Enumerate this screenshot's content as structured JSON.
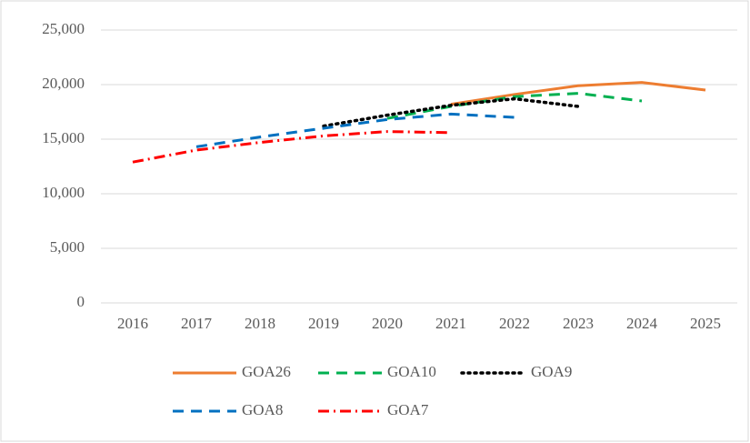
{
  "chart_data": {
    "type": "line",
    "categories": [
      "2016",
      "2017",
      "2018",
      "2019",
      "2020",
      "2021",
      "2022",
      "2023",
      "2024",
      "2025"
    ],
    "series": [
      {
        "name": "GOA26",
        "color": "#ed7d31",
        "dash": "solid",
        "values": [
          null,
          null,
          null,
          null,
          null,
          18200,
          19100,
          19900,
          20200,
          19500
        ]
      },
      {
        "name": "GOA10",
        "color": "#00b050",
        "dash": "dash",
        "values": [
          null,
          null,
          null,
          null,
          16900,
          18000,
          18900,
          19200,
          18500,
          null
        ]
      },
      {
        "name": "GOA9",
        "color": "#000000",
        "dash": "dot",
        "values": [
          null,
          null,
          null,
          16200,
          17200,
          18100,
          18700,
          18000,
          null,
          null
        ]
      },
      {
        "name": "GOA8",
        "color": "#0070c0",
        "dash": "dash",
        "values": [
          null,
          14300,
          15200,
          16000,
          16800,
          17300,
          17000,
          null,
          null,
          null
        ]
      },
      {
        "name": "GOA7",
        "color": "#ff0000",
        "dash": "dashdot",
        "values": [
          12900,
          14000,
          14700,
          15300,
          15700,
          15600,
          null,
          null,
          null,
          null
        ]
      }
    ],
    "ylim": [
      0,
      25000
    ],
    "yticks": [
      0,
      {
        "value": 5000,
        "label": "5,000"
      },
      {
        "value": 10000,
        "label": "10,000"
      },
      {
        "value": 15000,
        "label": "15,000"
      },
      {
        "value": 20000,
        "label": "20,000"
      },
      {
        "value": 25000,
        "label": "25,000"
      }
    ],
    "grid": true,
    "legend": "bottom"
  }
}
